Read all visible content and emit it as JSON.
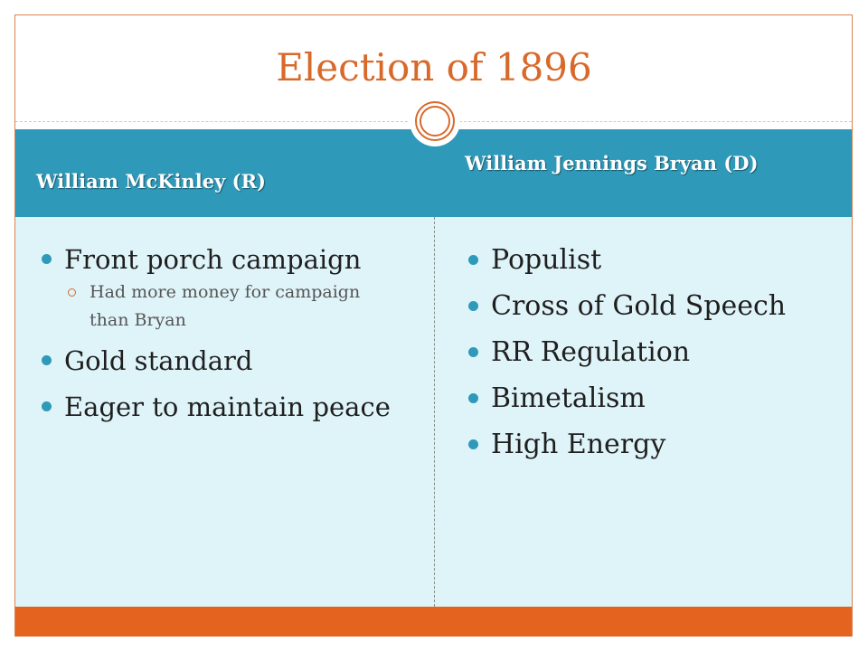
{
  "slide": {
    "title": "Election of 1896"
  },
  "columns": [
    {
      "header": "William McKinley (R)",
      "items": [
        {
          "text": "Front porch campaign",
          "sub_items": [
            "Had more money for campaign than Bryan"
          ]
        },
        {
          "text": "Gold standard"
        },
        {
          "text": "Eager to maintain peace"
        }
      ]
    },
    {
      "header": "William Jennings Bryan (D)",
      "items": [
        {
          "text": "Populist"
        },
        {
          "text": "Cross of Gold Speech"
        },
        {
          "text": "RR Regulation"
        },
        {
          "text": "Bimetalism"
        },
        {
          "text": "High Energy"
        }
      ]
    }
  ],
  "colors": {
    "title": "#d8692a",
    "header_band": "#2f99b9",
    "content_background": "#dff4f9",
    "footer_band": "#e4631e",
    "bullet": "#2f99b9",
    "sub_bullet": "#d8692a"
  },
  "icons": {
    "bullet": "filled-circle-bullet",
    "sub_bullet": "hollow-circle-bullet",
    "divider_ornament": "concentric-circles-ornament"
  }
}
